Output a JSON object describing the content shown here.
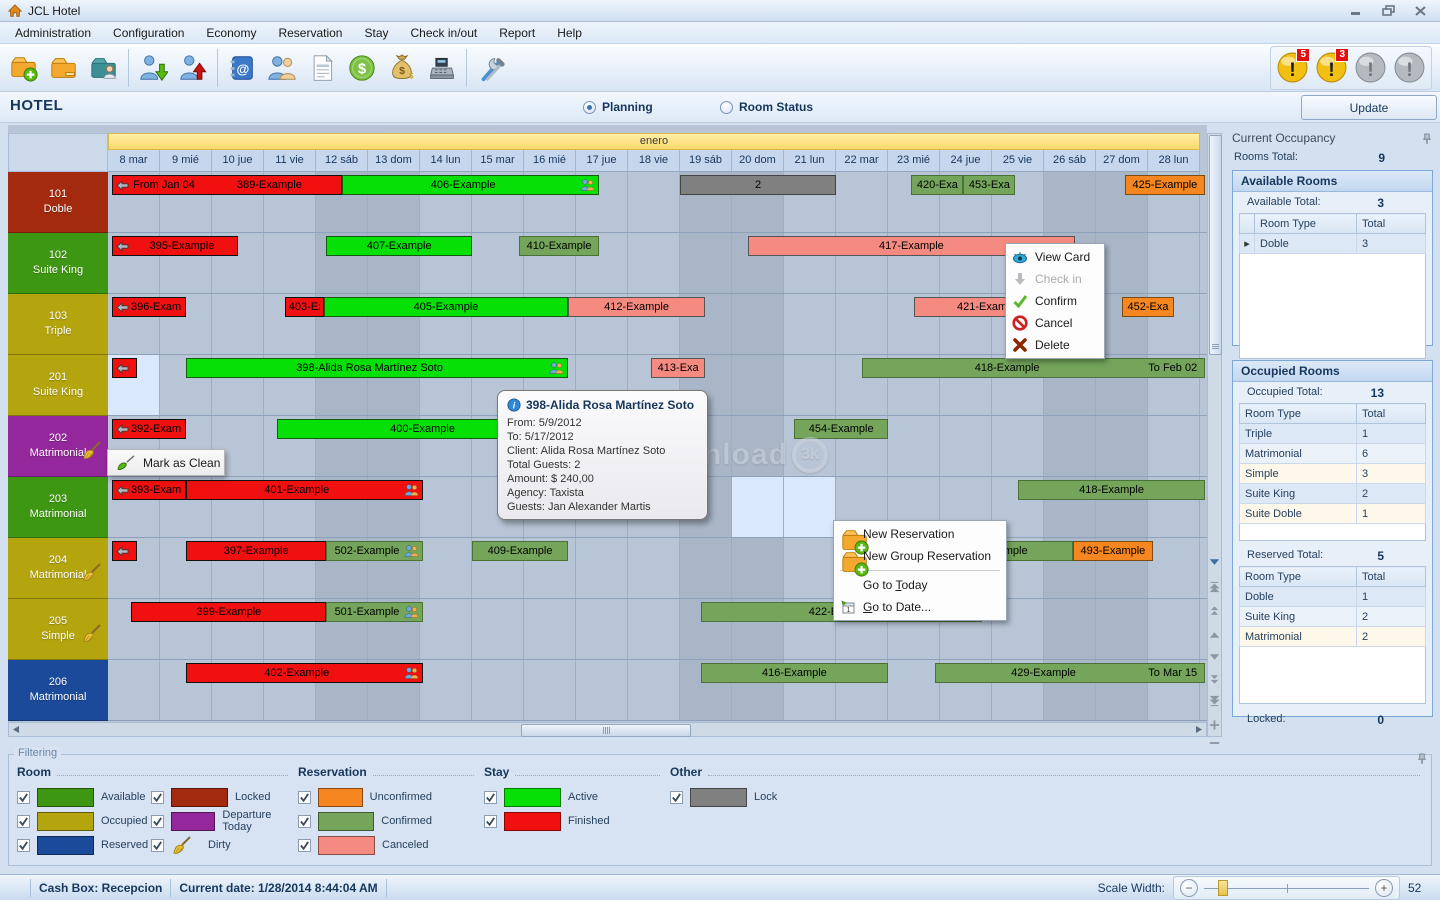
{
  "window": {
    "title": "JCL Hotel"
  },
  "menu": {
    "items": [
      "Administration",
      "Configuration",
      "Economy",
      "Reservation",
      "Stay",
      "Check in/out",
      "Report",
      "Help"
    ]
  },
  "toolbar": {
    "icons": [
      "new-folder-icon",
      "folder-icon",
      "guest-folder-icon",
      "sep",
      "check-in-icon",
      "check-out-icon",
      "sep",
      "address-book-icon",
      "clients-icon",
      "invoice-icon",
      "money-icon",
      "moneybag-icon",
      "cash-register-icon",
      "sep",
      "tools-icon"
    ],
    "alerts": [
      {
        "name": "alert-gold-icon",
        "badge": "5"
      },
      {
        "name": "alert-gold-icon",
        "badge": "3"
      },
      {
        "name": "alert-gray-icon",
        "badge": null
      },
      {
        "name": "alert-gray-icon",
        "badge": null
      }
    ]
  },
  "header": {
    "title": "HOTEL",
    "radios": [
      {
        "label": "Planning",
        "selected": true
      },
      {
        "label": "Room Status",
        "selected": false
      }
    ],
    "update_label": "Update"
  },
  "calendar": {
    "month_label": "enero",
    "days": [
      "8 mar",
      "9 mié",
      "10 jue",
      "11 vie",
      "12 sáb",
      "13 dom",
      "14 lun",
      "15 mar",
      "16 mié",
      "17 jue",
      "18 vie",
      "19 sáb",
      "20 dom",
      "21 lun",
      "22 mar",
      "23 mié",
      "24 jue",
      "25 vie",
      "26 sáb",
      "27 dom",
      "28 lun"
    ],
    "weekend_indices": [
      4,
      5,
      11,
      12,
      18,
      19
    ],
    "rooms": [
      {
        "number": "101",
        "type": "Doble",
        "color": "locked",
        "dirty": false
      },
      {
        "number": "102",
        "type": "Suite King",
        "color": "available",
        "dirty": false
      },
      {
        "number": "103",
        "type": "Triple",
        "color": "occupied",
        "dirty": false
      },
      {
        "number": "201",
        "type": "Suite King",
        "color": "occupied",
        "dirty": false
      },
      {
        "number": "202",
        "type": "Matrimonial",
        "color": "departure",
        "dirty": true
      },
      {
        "number": "203",
        "type": "Matrimonial",
        "color": "available",
        "dirty": false
      },
      {
        "number": "204",
        "type": "Matrimonial",
        "color": "occupied",
        "dirty": true
      },
      {
        "number": "205",
        "type": "Simple",
        "color": "occupied",
        "dirty": true
      },
      {
        "number": "206",
        "type": "Matrimonial",
        "color": "reserved",
        "dirty": false
      }
    ],
    "highlights": [
      {
        "room": 3,
        "start": 0,
        "end": 1
      },
      {
        "room": 5,
        "start": 12,
        "end": 14
      }
    ],
    "bars": [
      {
        "room": 0,
        "start": 0.08,
        "end": 4.5,
        "status": "finished",
        "arrow": true,
        "prefix": "From Jan 04",
        "label": "389-Example"
      },
      {
        "room": 0,
        "start": 4.5,
        "end": 9.45,
        "status": "active",
        "label": "406-Example",
        "people": true
      },
      {
        "room": 0,
        "start": 11,
        "end": 14,
        "status": "lock",
        "label": "2"
      },
      {
        "room": 0,
        "start": 15.45,
        "end": 16.45,
        "status": "confirmed",
        "label": "420-Exa"
      },
      {
        "room": 0,
        "start": 16.45,
        "end": 17.45,
        "status": "confirmed",
        "label": "453-Exa"
      },
      {
        "room": 0,
        "start": 19.55,
        "end": 21.1,
        "status": "unconfirmed",
        "label": "425-Example"
      },
      {
        "room": 1,
        "start": 0.08,
        "end": 2.5,
        "status": "finished",
        "arrow": true,
        "label": "395-Example"
      },
      {
        "room": 1,
        "start": 4.2,
        "end": 7.0,
        "status": "active",
        "label": "407-Example"
      },
      {
        "room": 1,
        "start": 7.9,
        "end": 9.45,
        "status": "confirmed",
        "label": "410-Example"
      },
      {
        "room": 1,
        "start": 12.3,
        "end": 18.6,
        "status": "canceled",
        "label": "417-Example"
      },
      {
        "room": 2,
        "start": 0.08,
        "end": 1.5,
        "status": "finished",
        "arrow": true,
        "label": "396-Exam"
      },
      {
        "room": 2,
        "start": 3.4,
        "end": 4.15,
        "status": "finished",
        "label": "403-Ex"
      },
      {
        "room": 2,
        "start": 4.15,
        "end": 8.85,
        "status": "active",
        "label": "405-Example"
      },
      {
        "room": 2,
        "start": 8.85,
        "end": 11.48,
        "status": "canceled",
        "label": "412-Example"
      },
      {
        "room": 2,
        "start": 15.5,
        "end": 18.4,
        "status": "canceled",
        "label": "421-Example"
      },
      {
        "room": 2,
        "start": 19.5,
        "end": 20.5,
        "status": "unconfirmed",
        "label": "452-Exa"
      },
      {
        "room": 3,
        "start": 0.08,
        "end": 0.55,
        "status": "finished",
        "arrow": true,
        "label": ""
      },
      {
        "room": 3,
        "start": 1.5,
        "end": 8.85,
        "status": "active",
        "label": "398-Alida Rosa Martínez Soto",
        "people": true
      },
      {
        "room": 3,
        "start": 10.45,
        "end": 11.48,
        "status": "canceled",
        "label": "413-Exa"
      },
      {
        "room": 3,
        "start": 14.5,
        "end": 21.1,
        "status": "confirmed",
        "label": "418-Example",
        "suffix": "To Feb 02"
      },
      {
        "room": 4,
        "start": 0.08,
        "end": 1.5,
        "status": "finished",
        "arrow": true,
        "label": "392-Exam"
      },
      {
        "room": 4,
        "start": 3.25,
        "end": 8.85,
        "status": "active",
        "label": "400-Example"
      },
      {
        "room": 4,
        "start": 13.2,
        "end": 15.0,
        "status": "confirmed",
        "label": "454-Example"
      },
      {
        "room": 5,
        "start": 0.08,
        "end": 1.5,
        "status": "finished",
        "arrow": true,
        "label": "393-Exam"
      },
      {
        "room": 5,
        "start": 1.5,
        "end": 6.05,
        "status": "finished",
        "label": "401-Example",
        "people": true
      },
      {
        "room": 5,
        "start": 17.5,
        "end": 21.1,
        "status": "confirmed",
        "label": "418-Example"
      },
      {
        "room": 6,
        "start": 0.08,
        "end": 0.55,
        "status": "finished",
        "arrow": true,
        "label": ""
      },
      {
        "room": 6,
        "start": 1.5,
        "end": 4.2,
        "status": "finished",
        "label": "397-Example"
      },
      {
        "room": 6,
        "start": 4.2,
        "end": 6.05,
        "status": "confirmed",
        "label": "502-Example",
        "people": true
      },
      {
        "room": 6,
        "start": 7.0,
        "end": 8.85,
        "status": "confirmed",
        "label": "409-Example"
      },
      {
        "room": 6,
        "start": 15.85,
        "end": 18.55,
        "status": "confirmed",
        "label": "mple",
        "align": "right"
      },
      {
        "room": 6,
        "start": 18.55,
        "end": 20.1,
        "status": "unconfirmed",
        "label": "493-Example"
      },
      {
        "room": 7,
        "start": 0.45,
        "end": 4.2,
        "status": "finished",
        "label": "399-Example"
      },
      {
        "room": 7,
        "start": 4.2,
        "end": 6.05,
        "status": "confirmed",
        "label": "501-Example",
        "people": true
      },
      {
        "room": 7,
        "start": 11.4,
        "end": 16.8,
        "status": "confirmed",
        "label": "422-Example"
      },
      {
        "room": 8,
        "start": 1.5,
        "end": 6.05,
        "status": "finished",
        "label": "402-Example",
        "people": true
      },
      {
        "room": 8,
        "start": 11.4,
        "end": 15.0,
        "status": "confirmed",
        "label": "416-Example"
      },
      {
        "room": 8,
        "start": 15.9,
        "end": 21.1,
        "status": "confirmed",
        "label": "429-Example",
        "suffix": "To Mar 15"
      }
    ]
  },
  "tooltip": {
    "title": "398-Alida Rosa Martínez Soto",
    "lines": [
      "From: 5/9/2012",
      "To: 5/17/2012",
      "Client: Alida Rosa Martínez Soto",
      "Total Guests: 2",
      "Amount: $ 240,00",
      "Agency: Taxista",
      "Guests: Jan Alexander Martis"
    ]
  },
  "context_menu_reservation": {
    "items": [
      {
        "label": "View Card",
        "icon": "eye-icon"
      },
      {
        "label": "Check in",
        "icon": "checkin-arrow-icon",
        "disabled": true
      },
      {
        "label": "Confirm",
        "icon": "confirm-check-icon"
      },
      {
        "label": "Cancel",
        "icon": "cancel-icon"
      },
      {
        "label": "Delete",
        "icon": "delete-x-icon"
      }
    ]
  },
  "context_menu_grid": {
    "items": [
      {
        "label": "New Reservation",
        "icon": "new-folder-icon"
      },
      {
        "label": "New Group Reservation",
        "icon": "new-folder-icon"
      },
      {
        "separator": true
      },
      {
        "label": "Go to Today",
        "hotkey": "T"
      },
      {
        "label": "Go to Date...",
        "icon": "calendar-icon",
        "hotkey": "G"
      }
    ]
  },
  "mark_clean": {
    "label": "Mark as Clean"
  },
  "watermark": {
    "word": "download",
    "badge": "3k"
  },
  "sidebar": {
    "title": "Current Occupancy",
    "rooms_total_label": "Rooms Total:",
    "rooms_total": "9",
    "available": {
      "title": "Available Rooms",
      "total_label": "Available Total:",
      "total": "3",
      "columns": [
        "Room Type",
        "Total"
      ],
      "rows": [
        [
          "Doble",
          "3"
        ]
      ]
    },
    "occupied": {
      "title": "Occupied Rooms",
      "total_label": "Occupied Total:",
      "total": "13",
      "columns": [
        "Room Type",
        "Total"
      ],
      "rows": [
        [
          "Triple",
          "1"
        ],
        [
          "Matrimonial",
          "6"
        ],
        [
          "Simple",
          "3"
        ],
        [
          "Suite King",
          "2"
        ],
        [
          "Suite Doble",
          "1"
        ]
      ],
      "reserved_label": "Reserved Total:",
      "reserved_total": "5",
      "reserved_rows": [
        [
          "Doble",
          "1"
        ],
        [
          "Suite King",
          "2"
        ],
        [
          "Matrimonial",
          "2"
        ]
      ],
      "locked_label": "Locked:",
      "locked_total": "0"
    }
  },
  "filtering": {
    "title": "Filtering",
    "groups": [
      {
        "title": "Room",
        "columns": [
          [
            {
              "label": "Available",
              "swatch": "room.available"
            },
            {
              "label": "Occupied",
              "swatch": "room.occupied"
            },
            {
              "label": "Reserved",
              "swatch": "room.reserved"
            }
          ],
          [
            {
              "label": "Locked",
              "swatch": "room.locked"
            },
            {
              "label": "Departure Today",
              "swatch": "room.departure"
            },
            {
              "label": "Dirty",
              "icon": "broom-icon"
            }
          ]
        ]
      },
      {
        "title": "Reservation",
        "columns": [
          [
            {
              "label": "Unconfirmed",
              "swatch": "status.unconfirmed"
            },
            {
              "label": "Confirmed",
              "swatch": "status.confirmed"
            },
            {
              "label": "Canceled",
              "swatch": "status.canceled"
            }
          ]
        ]
      },
      {
        "title": "Stay",
        "columns": [
          [
            {
              "label": "Active",
              "swatch": "status.active"
            },
            {
              "label": "Finished",
              "swatch": "status.finished"
            }
          ]
        ]
      },
      {
        "title": "Other",
        "columns": [
          [
            {
              "label": "Lock",
              "swatch": "status.lock"
            }
          ]
        ]
      }
    ]
  },
  "statusbar": {
    "cashbox": "Cash Box: Recepcion",
    "current_date": "Current date: 1/28/2014 8:44:04 AM",
    "scale_label": "Scale Width:",
    "scale_value": "52"
  },
  "colors": {
    "room": {
      "available": "#3e9712",
      "occupied": "#b4a40e",
      "reserved": "#1c4a9b",
      "locked": "#a3290f",
      "departure": "#93279b"
    },
    "status": {
      "finished": "#f01010",
      "active": "#07e007",
      "confirmed": "#74a55a",
      "canceled": "#f58a80",
      "unconfirmed": "#f6861f",
      "lock": "#808080"
    },
    "status_border": {
      "finished": "#101010",
      "active": "#115c11",
      "confirmed": "#4a7238",
      "canceled": "#555555",
      "unconfirmed": "#7a4c12",
      "lock": "#444444"
    },
    "highlight_cell": "#d9e8fa",
    "accent_navy": "#16365c"
  }
}
